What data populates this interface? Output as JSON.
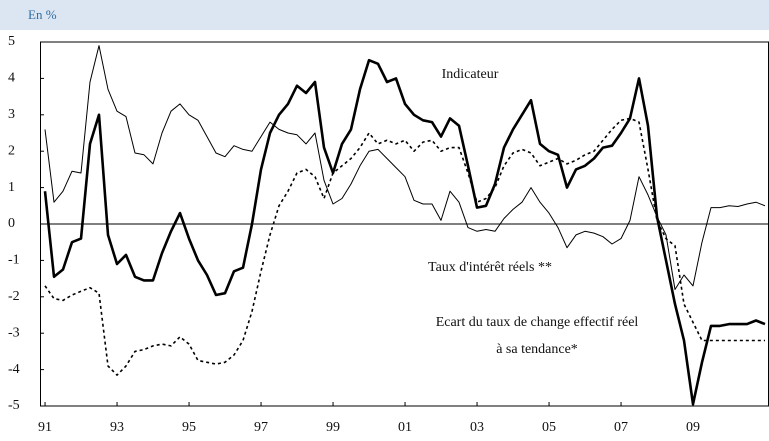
{
  "chart_data": {
    "type": "line",
    "subtitle": "En %",
    "x": [
      1991,
      1991.25,
      1991.5,
      1991.75,
      1992,
      1992.25,
      1992.5,
      1992.75,
      1993,
      1993.25,
      1993.5,
      1993.75,
      1994,
      1994.25,
      1994.5,
      1994.75,
      1995,
      1995.25,
      1995.5,
      1995.75,
      1996,
      1996.25,
      1996.5,
      1996.75,
      1997,
      1997.25,
      1997.5,
      1997.75,
      1998,
      1998.25,
      1998.5,
      1998.75,
      1999,
      1999.25,
      1999.5,
      1999.75,
      2000,
      2000.25,
      2000.5,
      2000.75,
      2001,
      2001.25,
      2001.5,
      2001.75,
      2002,
      2002.25,
      2002.5,
      2002.75,
      2003,
      2003.25,
      2003.5,
      2003.75,
      2004,
      2004.25,
      2004.5,
      2004.75,
      2005,
      2005.25,
      2005.5,
      2005.75,
      2006,
      2006.25,
      2006.5,
      2006.75,
      2007,
      2007.25,
      2007.5,
      2007.75,
      2008,
      2008.25,
      2008.5,
      2008.75,
      2009,
      2009.25,
      2009.5,
      2009.75,
      2010,
      2010.25,
      2010.5,
      2010.75,
      2011
    ],
    "series": [
      {
        "name": "Indicateur",
        "color": "#000000",
        "width": 2.6,
        "dash": "none",
        "values": [
          0.9,
          -1.45,
          -1.25,
          -0.5,
          -0.4,
          2.2,
          3.0,
          -0.3,
          -1.1,
          -0.85,
          -1.45,
          -1.55,
          -1.55,
          -0.8,
          -0.2,
          0.3,
          -0.4,
          -1.0,
          -1.4,
          -1.95,
          -1.9,
          -1.3,
          -1.2,
          0.0,
          1.5,
          2.5,
          3.0,
          3.3,
          3.8,
          3.6,
          3.9,
          2.1,
          1.4,
          2.2,
          2.6,
          3.7,
          4.5,
          4.4,
          3.9,
          4.0,
          3.3,
          3.0,
          2.85,
          2.8,
          2.4,
          2.9,
          2.7,
          1.6,
          0.45,
          0.5,
          1.1,
          2.1,
          2.6,
          3.0,
          3.4,
          2.2,
          2.0,
          1.9,
          1.0,
          1.5,
          1.6,
          1.8,
          2.1,
          2.15,
          2.5,
          2.9,
          4.0,
          2.7,
          0.2,
          -1.0,
          -2.2,
          -3.2,
          -4.95,
          -3.8,
          -2.8,
          -2.8,
          -2.75,
          -2.75,
          -2.75,
          -2.65,
          -2.75
        ]
      },
      {
        "name": "Taux d'intérêt réels **",
        "color": "#000000",
        "width": 1,
        "dash": "none",
        "values": [
          2.6,
          0.6,
          0.9,
          1.45,
          1.4,
          3.9,
          4.9,
          3.7,
          3.1,
          2.95,
          1.95,
          1.9,
          1.65,
          2.5,
          3.1,
          3.3,
          3.0,
          2.85,
          2.4,
          1.95,
          1.85,
          2.15,
          2.05,
          2.0,
          2.4,
          2.8,
          2.6,
          2.5,
          2.45,
          2.2,
          2.5,
          1.2,
          0.55,
          0.7,
          1.1,
          1.6,
          2.0,
          2.05,
          1.8,
          1.55,
          1.3,
          0.65,
          0.55,
          0.55,
          0.1,
          0.9,
          0.6,
          -0.1,
          -0.2,
          -0.15,
          -0.2,
          0.15,
          0.4,
          0.6,
          1.0,
          0.6,
          0.3,
          -0.1,
          -0.65,
          -0.3,
          -0.2,
          -0.25,
          -0.35,
          -0.55,
          -0.4,
          0.1,
          1.3,
          0.8,
          0.2,
          -0.3,
          -1.8,
          -1.4,
          -1.7,
          -0.5,
          0.45,
          0.45,
          0.5,
          0.48,
          0.55,
          0.6,
          0.5
        ]
      },
      {
        "name": "Ecart du taux de change effectif réel\nà sa tendance*",
        "color": "#000000",
        "width": 1.6,
        "dash": "3 3",
        "values": [
          -1.7,
          -2.05,
          -2.1,
          -1.95,
          -1.85,
          -1.75,
          -1.9,
          -3.9,
          -4.15,
          -3.9,
          -3.5,
          -3.45,
          -3.35,
          -3.3,
          -3.35,
          -3.1,
          -3.3,
          -3.75,
          -3.8,
          -3.85,
          -3.8,
          -3.6,
          -3.2,
          -2.4,
          -1.3,
          -0.3,
          0.5,
          0.9,
          1.4,
          1.5,
          1.3,
          0.7,
          1.4,
          1.6,
          1.8,
          2.1,
          2.5,
          2.2,
          2.3,
          2.2,
          2.3,
          2.0,
          2.25,
          2.3,
          2.0,
          2.1,
          2.1,
          1.4,
          0.6,
          0.7,
          1.0,
          1.6,
          1.95,
          2.05,
          1.95,
          1.6,
          1.7,
          1.8,
          1.65,
          1.75,
          1.9,
          2.0,
          2.3,
          2.6,
          2.85,
          2.9,
          2.8,
          1.5,
          0.1,
          -0.4,
          -0.6,
          -2.2,
          -2.7,
          -3.2,
          -3.2,
          -3.2,
          -3.2,
          -3.2,
          -3.2,
          -3.2,
          -3.2
        ]
      }
    ],
    "xlim": [
      1990.86,
      2011.11
    ],
    "xticks": [
      {
        "value": 1991,
        "label": "91"
      },
      {
        "value": 1993,
        "label": "93"
      },
      {
        "value": 1995,
        "label": "95"
      },
      {
        "value": 1997,
        "label": "97"
      },
      {
        "value": 1999,
        "label": "99"
      },
      {
        "value": 2001,
        "label": "01"
      },
      {
        "value": 2003,
        "label": "03"
      },
      {
        "value": 2005,
        "label": "05"
      },
      {
        "value": 2007,
        "label": "07"
      },
      {
        "value": 2009,
        "label": "09"
      }
    ],
    "ylim": [
      -5,
      5
    ],
    "yticks": [
      -5,
      -4,
      -3,
      -2,
      -1,
      0,
      1,
      2,
      3,
      4,
      5
    ]
  }
}
